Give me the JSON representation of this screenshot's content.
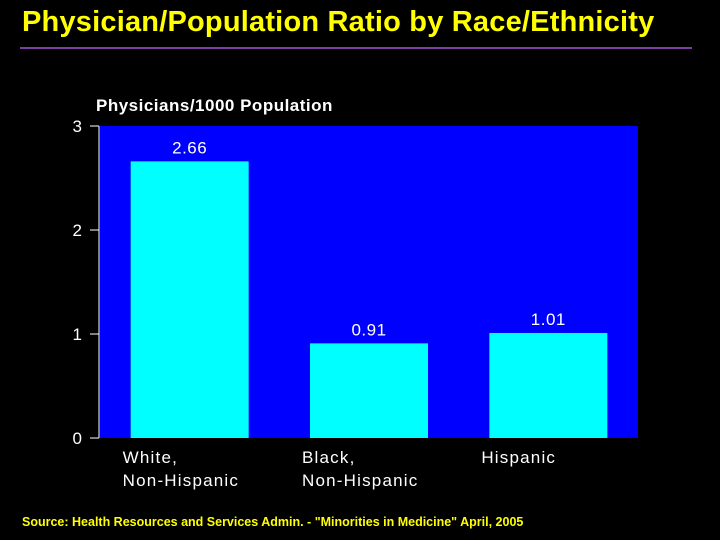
{
  "title": "Physician/Population Ratio by Race/Ethnicity",
  "source": "Source: Health Resources and Services Admin. - \"Minorities in Medicine\" April, 2005",
  "colors": {
    "background": "#000000",
    "plot_area": "#0000ff",
    "bar": "#00ffff",
    "title": "#ffff00",
    "text": "#ffffff"
  },
  "chart_data": {
    "type": "bar",
    "title": "Physicians/1000 Population",
    "xlabel": "",
    "ylabel": "Physicians/1000 Population",
    "ylim": [
      0,
      3
    ],
    "yticks": [
      0,
      1,
      2,
      3
    ],
    "categories": [
      [
        "White,",
        "Non-Hispanic"
      ],
      [
        "Black,",
        "Non-Hispanic"
      ],
      [
        "Hispanic"
      ]
    ],
    "values": [
      2.66,
      0.91,
      1.01
    ],
    "value_labels": [
      "2.66",
      "0.91",
      "1.01"
    ],
    "grid": false,
    "legend": "none"
  }
}
